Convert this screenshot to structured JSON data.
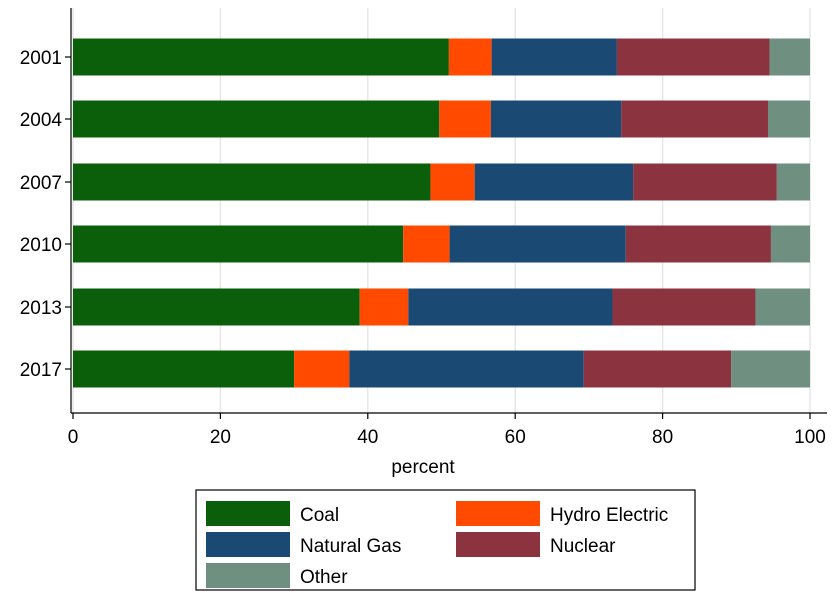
{
  "chart_data": {
    "type": "bar",
    "orientation": "horizontal",
    "stacked": true,
    "categories": [
      "2001",
      "2004",
      "2007",
      "2010",
      "2013",
      "2017"
    ],
    "series": [
      {
        "name": "Coal",
        "color": "#0b5f0b",
        "values": [
          51.0,
          49.7,
          48.5,
          44.8,
          38.9,
          30.0
        ]
      },
      {
        "name": "Hydro Electric",
        "color": "#ff4a00",
        "values": [
          5.8,
          7.0,
          6.0,
          6.3,
          6.6,
          7.5
        ]
      },
      {
        "name": "Natural Gas",
        "color": "#1a4a73",
        "values": [
          17.0,
          17.7,
          21.5,
          23.9,
          27.7,
          31.8
        ]
      },
      {
        "name": "Nuclear",
        "color": "#8b3440",
        "values": [
          20.7,
          19.9,
          19.5,
          19.7,
          19.4,
          20.0
        ]
      },
      {
        "name": "Other",
        "color": "#6f8f80",
        "values": [
          5.5,
          5.7,
          4.5,
          5.3,
          7.4,
          10.7
        ]
      }
    ],
    "xlabel": "percent",
    "ylabel": "",
    "xlim": [
      0,
      100
    ],
    "xticks": [
      0,
      20,
      40,
      60,
      80,
      100
    ],
    "grid": true,
    "legend": {
      "position": "bottom",
      "columns": 2
    }
  }
}
